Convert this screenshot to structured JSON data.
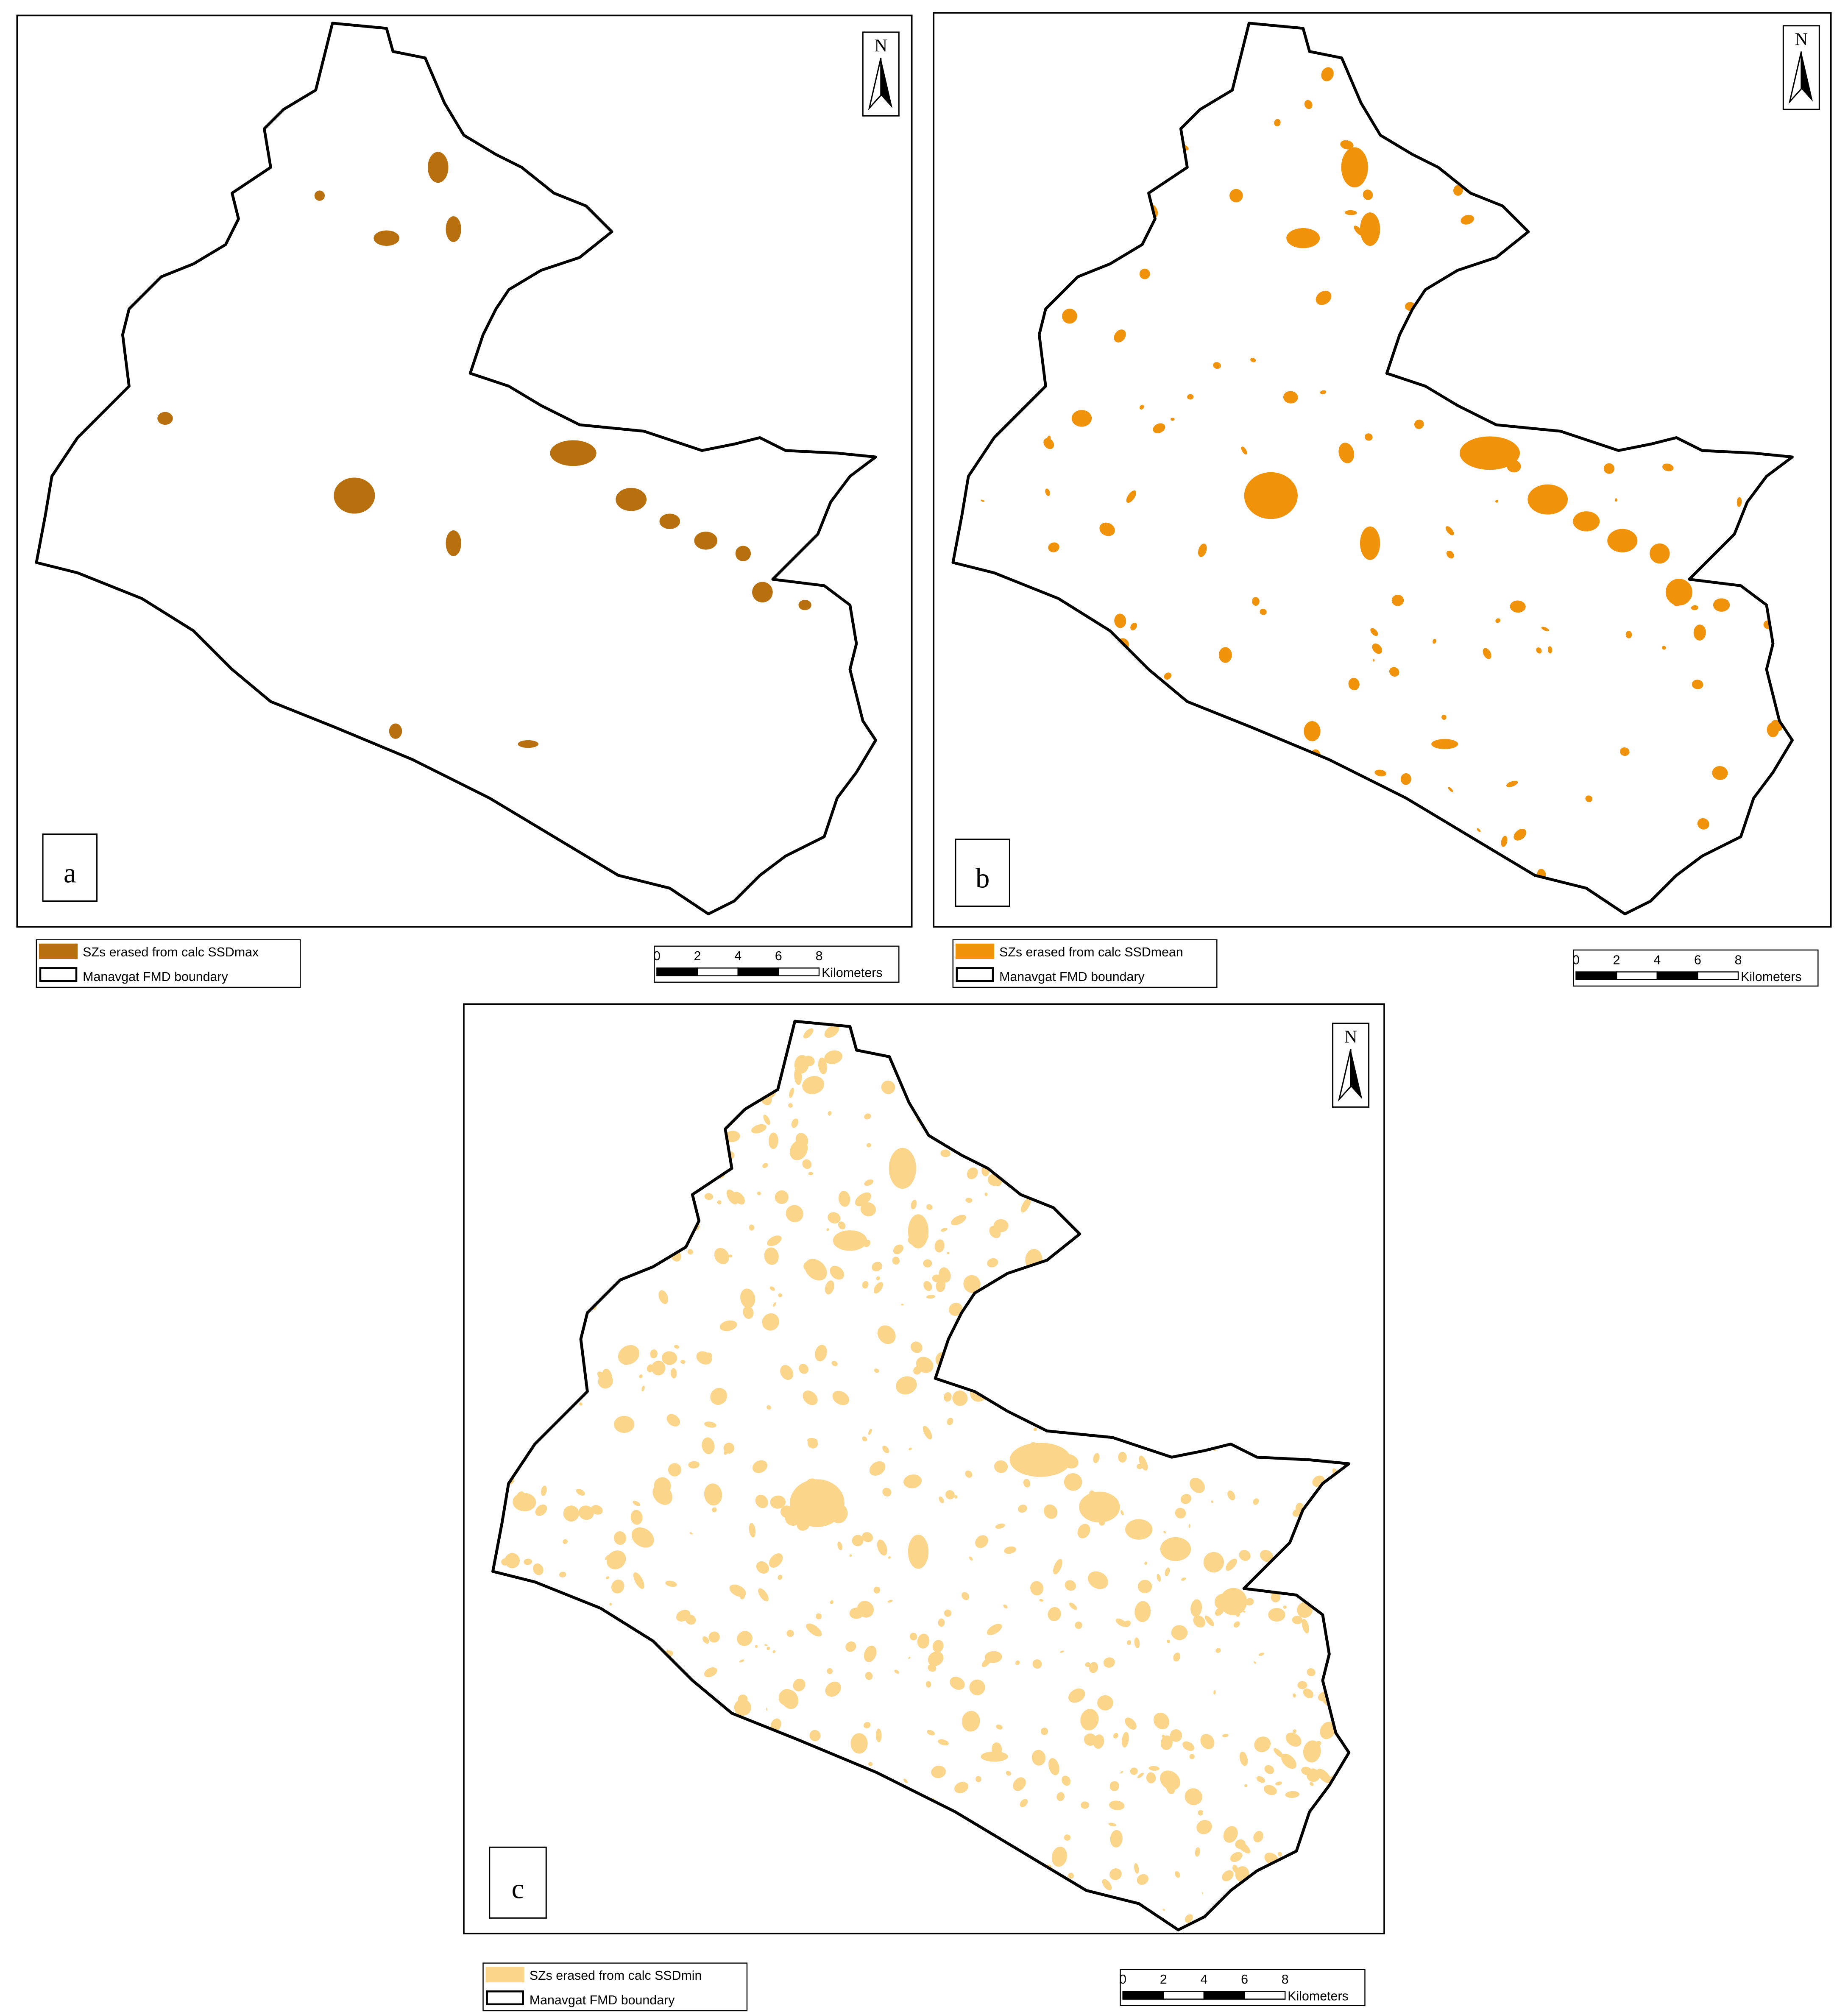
{
  "panels": [
    {
      "label": "a",
      "color": "#b8700f",
      "legend": [
        "SZs erased from calc SSDmax",
        "Manavgat FMD boundary"
      ],
      "north": "N",
      "scale_bar": {
        "ticks": [
          0,
          2,
          4,
          6,
          8
        ],
        "unit": "Kilometers"
      }
    },
    {
      "label": "b",
      "color": "#f0920a",
      "legend": [
        "SZs erased from calc SSDmean",
        "Manavgat FMD boundary"
      ],
      "north": "N",
      "scale_bar": {
        "ticks": [
          0,
          2,
          4,
          6,
          8
        ],
        "unit": "Kilometers"
      }
    },
    {
      "label": "c",
      "color": "#fbd58a",
      "legend": [
        "SZs erased from calc SSDmin",
        "Manavgat FMD boundary"
      ],
      "north": "N",
      "scale_bar": {
        "ticks": [
          0,
          2,
          4,
          6,
          8
        ],
        "unit": "Kilometers"
      }
    }
  ]
}
